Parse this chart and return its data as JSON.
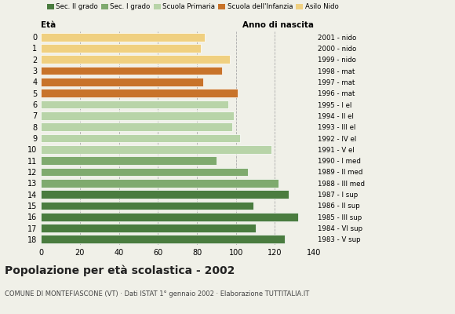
{
  "ages": [
    18,
    17,
    16,
    15,
    14,
    13,
    12,
    11,
    10,
    9,
    8,
    7,
    6,
    5,
    4,
    3,
    2,
    1,
    0
  ],
  "values": [
    125,
    110,
    132,
    109,
    127,
    122,
    106,
    90,
    118,
    102,
    98,
    99,
    96,
    101,
    83,
    93,
    97,
    82,
    84
  ],
  "right_labels": [
    "1983 - V sup",
    "1984 - VI sup",
    "1985 - III sup",
    "1986 - II sup",
    "1987 - I sup",
    "1988 - III med",
    "1989 - II med",
    "1990 - I med",
    "1991 - V el",
    "1992 - IV el",
    "1993 - III el",
    "1994 - II el",
    "1995 - I el",
    "1996 - mat",
    "1997 - mat",
    "1998 - mat",
    "1999 - nido",
    "2000 - nido",
    "2001 - nido"
  ],
  "bar_colors": [
    "#4a7c3f",
    "#4a7c3f",
    "#4a7c3f",
    "#4a7c3f",
    "#4a7c3f",
    "#7faa6e",
    "#7faa6e",
    "#7faa6e",
    "#b8d4a8",
    "#b8d4a8",
    "#b8d4a8",
    "#b8d4a8",
    "#b8d4a8",
    "#c8732a",
    "#c8732a",
    "#c8732a",
    "#f0d080",
    "#f0d080",
    "#f0d080"
  ],
  "legend_labels": [
    "Sec. II grado",
    "Sec. I grado",
    "Scuola Primaria",
    "Scuola dell'Infanzia",
    "Asilo Nido"
  ],
  "legend_colors": [
    "#4a7c3f",
    "#7faa6e",
    "#b8d4a8",
    "#c8732a",
    "#f0d080"
  ],
  "title": "Popolazione per età scolastica - 2002",
  "subtitle": "COMUNE DI MONTEFIASCONE (VT) · Dati ISTAT 1° gennaio 2002 · Elaborazione TUTTITALIA.IT",
  "xlabel_eta": "Età",
  "xlabel_anno": "Anno di nascita",
  "xlim": [
    0,
    140
  ],
  "xticks": [
    0,
    20,
    40,
    60,
    80,
    100,
    120,
    140
  ],
  "background_color": "#f0f0e8",
  "grid_color": "#aaaaaa"
}
